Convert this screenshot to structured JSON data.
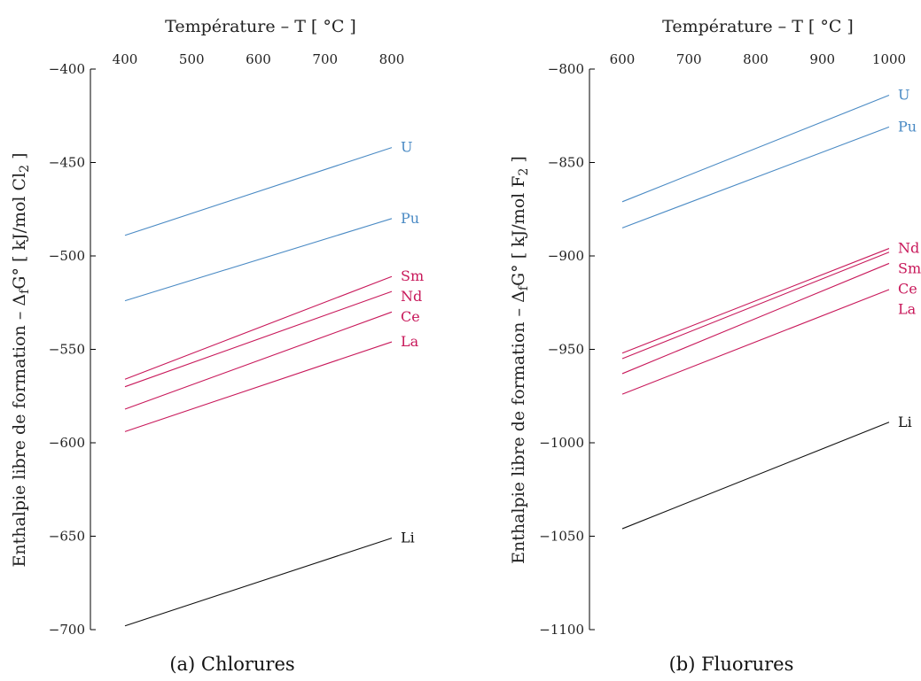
{
  "chart_data": [
    {
      "type": "line",
      "caption": "(a) Chlorures",
      "xlabel": "Température – T [ °C ]",
      "ylabel": "Enthalpie libre de formation – ΔfG° [ kJ/mol Cl2 ]",
      "xlim": [
        360,
        840
      ],
      "ylim": [
        -700,
        -400
      ],
      "xticks": [
        400,
        500,
        600,
        700,
        800
      ],
      "yticks": [
        -400,
        -450,
        -500,
        -550,
        -600,
        -650,
        -700
      ],
      "x_axis_position": "top",
      "grid": false,
      "series": [
        {
          "name": "U",
          "color": "#4a8ac4",
          "x": [
            400,
            800
          ],
          "y": [
            -489,
            -442
          ]
        },
        {
          "name": "Pu",
          "color": "#4a8ac4",
          "x": [
            400,
            800
          ],
          "y": [
            -524,
            -480
          ]
        },
        {
          "name": "Sm",
          "color": "#c8185a",
          "x": [
            400,
            800
          ],
          "y": [
            -566,
            -511
          ]
        },
        {
          "name": "Nd",
          "color": "#c8185a",
          "x": [
            400,
            800
          ],
          "y": [
            -570,
            -519
          ]
        },
        {
          "name": "Ce",
          "color": "#c8185a",
          "x": [
            400,
            800
          ],
          "y": [
            -582,
            -530
          ]
        },
        {
          "name": "La",
          "color": "#c8185a",
          "x": [
            400,
            800
          ],
          "y": [
            -594,
            -546
          ]
        },
        {
          "name": "Li",
          "color": "#111111",
          "x": [
            400,
            800
          ],
          "y": [
            -698,
            -651
          ]
        }
      ]
    },
    {
      "type": "line",
      "caption": "(b) Fluorures",
      "xlabel": "Température – T [ °C ]",
      "ylabel": "Enthalpie libre de formation – ΔfG° [ kJ/mol F2 ]",
      "xlim": [
        560,
        1040
      ],
      "ylim": [
        -1100,
        -800
      ],
      "xticks": [
        600,
        700,
        800,
        900,
        1000
      ],
      "yticks": [
        -800,
        -850,
        -900,
        -950,
        -1000,
        -1050,
        -1100
      ],
      "x_axis_position": "top",
      "grid": false,
      "series": [
        {
          "name": "U",
          "color": "#4a8ac4",
          "x": [
            600,
            1000
          ],
          "y": [
            -871,
            -814
          ]
        },
        {
          "name": "Pu",
          "color": "#4a8ac4",
          "x": [
            600,
            1000
          ],
          "y": [
            -885,
            -831
          ]
        },
        {
          "name": "Nd",
          "color": "#c8185a",
          "x": [
            600,
            1000
          ],
          "y": [
            -952,
            -896
          ]
        },
        {
          "name": "Sm",
          "color": "#c8185a",
          "x": [
            600,
            1000
          ],
          "y": [
            -955,
            -898
          ]
        },
        {
          "name": "Ce",
          "color": "#c8185a",
          "x": [
            600,
            1000
          ],
          "y": [
            -963,
            -904
          ]
        },
        {
          "name": "La",
          "color": "#c8185a",
          "x": [
            600,
            1000
          ],
          "y": [
            -974,
            -918
          ]
        },
        {
          "name": "Li",
          "color": "#111111",
          "x": [
            600,
            1000
          ],
          "y": [
            -1046,
            -989
          ]
        }
      ]
    }
  ]
}
